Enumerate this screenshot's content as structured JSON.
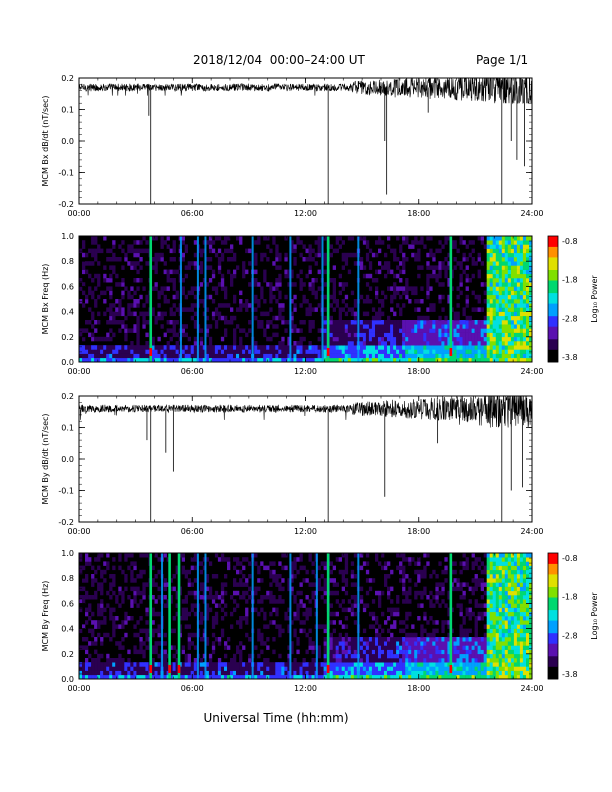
{
  "header": {
    "title": "2018/12/04  00:00–24:00 UT",
    "page": "Page 1/1"
  },
  "footer": {
    "xlabel": "Universal Time (hh:mm)"
  },
  "colors": {
    "background": "#ffffff",
    "trace": "#000000",
    "spectrogram_background": "#000000",
    "colormap": [
      "#000000",
      "#2a0050",
      "#5a10b0",
      "#3030ff",
      "#00a0ff",
      "#00e0e0",
      "#00d870",
      "#80e000",
      "#e0e000",
      "#ff9000",
      "#ff0000"
    ]
  },
  "chart_data": [
    {
      "type": "line",
      "panel": "bx-dbdt",
      "ylabel": "MCM Bx dB/dt (nT/sec)",
      "xlim": [
        0,
        24
      ],
      "ylim": [
        -0.2,
        0.2
      ],
      "x_ticks": [
        "00:00",
        "06:00",
        "12:00",
        "18:00",
        "24:00"
      ],
      "y_ticks": [
        "0.2",
        "0.1",
        "0.0",
        "-0.1",
        "-0.2"
      ],
      "baseline": 0.17,
      "noise_level": [
        0.15,
        0.19
      ],
      "spikes": [
        {
          "x": 3.8,
          "y": -0.2
        },
        {
          "x": 3.7,
          "y": 0.08
        },
        {
          "x": 13.2,
          "y": -0.2
        },
        {
          "x": 16.2,
          "y": 0.0
        },
        {
          "x": 16.3,
          "y": -0.17
        },
        {
          "x": 18.5,
          "y": 0.09
        },
        {
          "x": 22.4,
          "y": -0.2
        },
        {
          "x": 22.9,
          "y": 0.0
        },
        {
          "x": 23.2,
          "y": -0.06
        },
        {
          "x": 23.6,
          "y": -0.08
        }
      ]
    },
    {
      "type": "heatmap",
      "panel": "bx-spectrogram",
      "ylabel": "MCM Bx Freq (Hz)",
      "colorbar_label": "Log₁₀ Power",
      "colorbar_ticks": [
        "-0.8",
        "-1.8",
        "-2.8",
        "-3.8"
      ],
      "zlim": [
        -3.8,
        -0.8
      ],
      "xlim": [
        0,
        24
      ],
      "ylim": [
        0,
        1
      ],
      "x_ticks": [
        "00:00",
        "06:00",
        "12:00",
        "18:00",
        "24:00"
      ],
      "y_ticks": [
        "1.0",
        "0.8",
        "0.6",
        "0.4",
        "0.2",
        "0.0"
      ],
      "bright_lines_hours": [
        3.8,
        13.2,
        19.7
      ],
      "moderate_lines_hours": [
        5.4,
        6.3,
        6.7,
        9.2,
        11.2,
        12.9,
        14.8
      ],
      "active_region_hours": [
        21.6,
        24.0
      ]
    },
    {
      "type": "line",
      "panel": "by-dbdt",
      "ylabel": "MCM By dB/dt (nT/sec)",
      "xlim": [
        0,
        24
      ],
      "ylim": [
        -0.2,
        0.2
      ],
      "x_ticks": [
        "00:00",
        "06:00",
        "12:00",
        "18:00",
        "24:00"
      ],
      "y_ticks": [
        "0.2",
        "0.1",
        "0.0",
        "-0.1",
        "-0.2"
      ],
      "baseline": 0.16,
      "noise_level": [
        0.13,
        0.19
      ],
      "spikes": [
        {
          "x": 3.8,
          "y": -0.2
        },
        {
          "x": 3.6,
          "y": 0.06
        },
        {
          "x": 4.6,
          "y": 0.02
        },
        {
          "x": 5.0,
          "y": -0.04
        },
        {
          "x": 13.2,
          "y": -0.2
        },
        {
          "x": 16.2,
          "y": -0.12
        },
        {
          "x": 19.0,
          "y": 0.05
        },
        {
          "x": 22.4,
          "y": -0.2
        },
        {
          "x": 22.9,
          "y": -0.1
        },
        {
          "x": 23.5,
          "y": -0.09
        }
      ]
    },
    {
      "type": "heatmap",
      "panel": "by-spectrogram",
      "ylabel": "MCM By Freq (Hz)",
      "colorbar_label": "Log₁₀ Power",
      "colorbar_ticks": [
        "-0.8",
        "-1.8",
        "-2.8",
        "-3.8"
      ],
      "zlim": [
        -3.8,
        -0.8
      ],
      "xlim": [
        0,
        24
      ],
      "ylim": [
        0,
        1
      ],
      "x_ticks": [
        "00:00",
        "06:00",
        "12:00",
        "18:00",
        "24:00"
      ],
      "y_ticks": [
        "1.0",
        "0.8",
        "0.6",
        "0.4",
        "0.2",
        "0.0"
      ],
      "bright_lines_hours": [
        3.8,
        4.8,
        5.3,
        13.2,
        19.7
      ],
      "moderate_lines_hours": [
        4.4,
        6.3,
        6.7,
        9.2,
        11.2,
        12.6,
        14.8
      ],
      "active_region_hours": [
        21.6,
        24.0
      ]
    }
  ]
}
